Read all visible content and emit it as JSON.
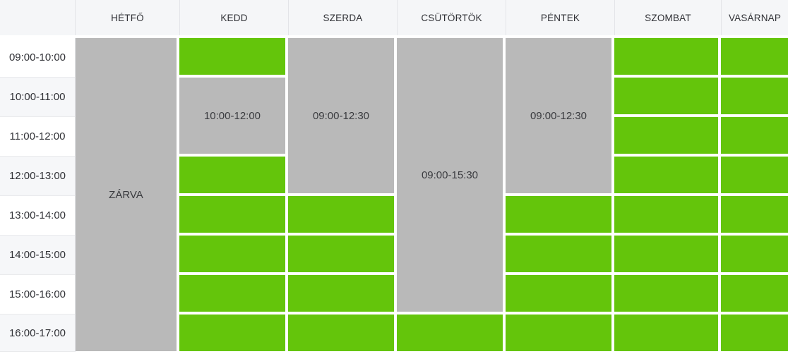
{
  "widget": {
    "type": "weekly-availability-schedule"
  },
  "colors": {
    "available": "#64c50b",
    "busy": "#b9b9b9",
    "header_bg": "#f5f6f8",
    "alt_row_bg": "#f6f7f9",
    "grid_line": "#e3e4e8",
    "row_line": "#e9eaec",
    "text_dark": "#303136",
    "text_label": "#3a3b3f",
    "background": "#ffffff"
  },
  "days": [
    "HÉTFŐ",
    "KEDD",
    "SZERDA",
    "CSÜTÖRTÖK",
    "PÉNTEK",
    "SZOMBAT",
    "VASÁRNAP"
  ],
  "time_slots": [
    "09:00-10:00",
    "10:00-11:00",
    "11:00-12:00",
    "12:00-13:00",
    "13:00-14:00",
    "14:00-15:00",
    "15:00-16:00",
    "16:00-17:00"
  ],
  "schedule": [
    {
      "day": "HÉTFŐ",
      "blocks": [
        {
          "status": "busy",
          "label": "ZÁRVA",
          "row": 1,
          "span": 8
        }
      ]
    },
    {
      "day": "KEDD",
      "blocks": [
        {
          "status": "available",
          "row": 1,
          "span": 1
        },
        {
          "status": "busy",
          "label": "10:00-12:00",
          "row": 2,
          "span": 2
        },
        {
          "status": "available",
          "row": 4,
          "span": 1
        },
        {
          "status": "available",
          "row": 5,
          "span": 1
        },
        {
          "status": "available",
          "row": 6,
          "span": 1
        },
        {
          "status": "available",
          "row": 7,
          "span": 1
        },
        {
          "status": "available",
          "row": 8,
          "span": 1
        }
      ]
    },
    {
      "day": "SZERDA",
      "blocks": [
        {
          "status": "busy",
          "label": "09:00-12:30",
          "row": 1,
          "span": 4
        },
        {
          "status": "available",
          "row": 5,
          "span": 1
        },
        {
          "status": "available",
          "row": 6,
          "span": 1
        },
        {
          "status": "available",
          "row": 7,
          "span": 1
        },
        {
          "status": "available",
          "row": 8,
          "span": 1
        }
      ]
    },
    {
      "day": "CSÜTÖRTÖK",
      "blocks": [
        {
          "status": "busy",
          "label": "09:00-15:30",
          "row": 1,
          "span": 7
        },
        {
          "status": "available",
          "row": 8,
          "span": 1
        }
      ]
    },
    {
      "day": "PÉNTEK",
      "blocks": [
        {
          "status": "busy",
          "label": "09:00-12:30",
          "row": 1,
          "span": 4
        },
        {
          "status": "available",
          "row": 5,
          "span": 1
        },
        {
          "status": "available",
          "row": 6,
          "span": 1
        },
        {
          "status": "available",
          "row": 7,
          "span": 1
        },
        {
          "status": "available",
          "row": 8,
          "span": 1
        }
      ]
    },
    {
      "day": "SZOMBAT",
      "blocks": [
        {
          "status": "available",
          "row": 1,
          "span": 1
        },
        {
          "status": "available",
          "row": 2,
          "span": 1
        },
        {
          "status": "available",
          "row": 3,
          "span": 1
        },
        {
          "status": "available",
          "row": 4,
          "span": 1
        },
        {
          "status": "available",
          "row": 5,
          "span": 1
        },
        {
          "status": "available",
          "row": 6,
          "span": 1
        },
        {
          "status": "available",
          "row": 7,
          "span": 1
        },
        {
          "status": "available",
          "row": 8,
          "span": 1
        }
      ]
    },
    {
      "day": "VASÁRNAP",
      "blocks": [
        {
          "status": "available",
          "row": 1,
          "span": 1
        },
        {
          "status": "available",
          "row": 2,
          "span": 1
        },
        {
          "status": "available",
          "row": 3,
          "span": 1
        },
        {
          "status": "available",
          "row": 4,
          "span": 1
        },
        {
          "status": "available",
          "row": 5,
          "span": 1
        },
        {
          "status": "available",
          "row": 6,
          "span": 1
        },
        {
          "status": "available",
          "row": 7,
          "span": 1
        },
        {
          "status": "available",
          "row": 8,
          "span": 1
        }
      ]
    }
  ]
}
